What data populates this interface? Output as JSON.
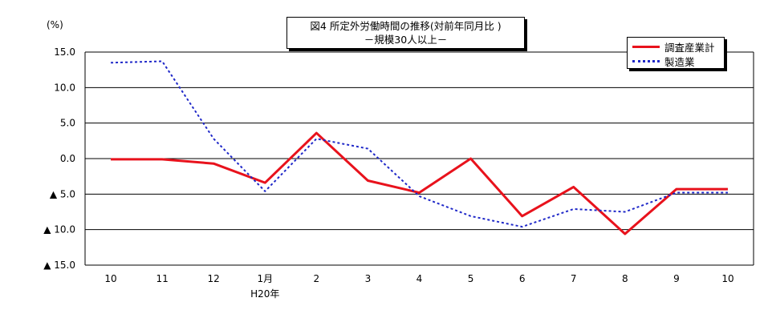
{
  "colors": {
    "series1": "#e8121c",
    "series2": "#1f28c8",
    "grid": "#000000"
  },
  "chart_data": {
    "type": "line",
    "title": "図4  所定外労働時間の推移(対前年同月比 )",
    "subtitle": "－規模30人以上－",
    "unit_label": "(%)",
    "categories": [
      "10",
      "11",
      "12",
      "1月",
      "2",
      "3",
      "4",
      "5",
      "6",
      "7",
      "8",
      "9",
      "10"
    ],
    "category_sublabels": [
      "",
      "",
      "",
      "H20年",
      "",
      "",
      "",
      "",
      "",
      "",
      "",
      "",
      ""
    ],
    "ylim": [
      -15,
      15
    ],
    "yticks": [
      15,
      10,
      5,
      0,
      -5,
      -10,
      -15
    ],
    "ytick_labels": [
      "15.0",
      "10.0",
      "5.0",
      "0.0",
      "▲ 5.0",
      "▲ 10.0",
      "▲ 15.0"
    ],
    "grid": true,
    "legend_position": "top-right",
    "series": [
      {
        "name": "調査産業計",
        "style": "solid",
        "values": [
          -0.1,
          -0.1,
          -0.7,
          -3.4,
          3.6,
          -3.1,
          -4.8,
          0.0,
          -8.1,
          -4.0,
          -10.6,
          -4.3,
          -4.3
        ]
      },
      {
        "name": "製造業",
        "style": "dotted",
        "values": [
          13.5,
          13.7,
          2.8,
          -4.6,
          2.8,
          1.4,
          -5.3,
          -8.1,
          -9.6,
          -7.1,
          -7.5,
          -4.8,
          -4.8
        ]
      }
    ]
  }
}
